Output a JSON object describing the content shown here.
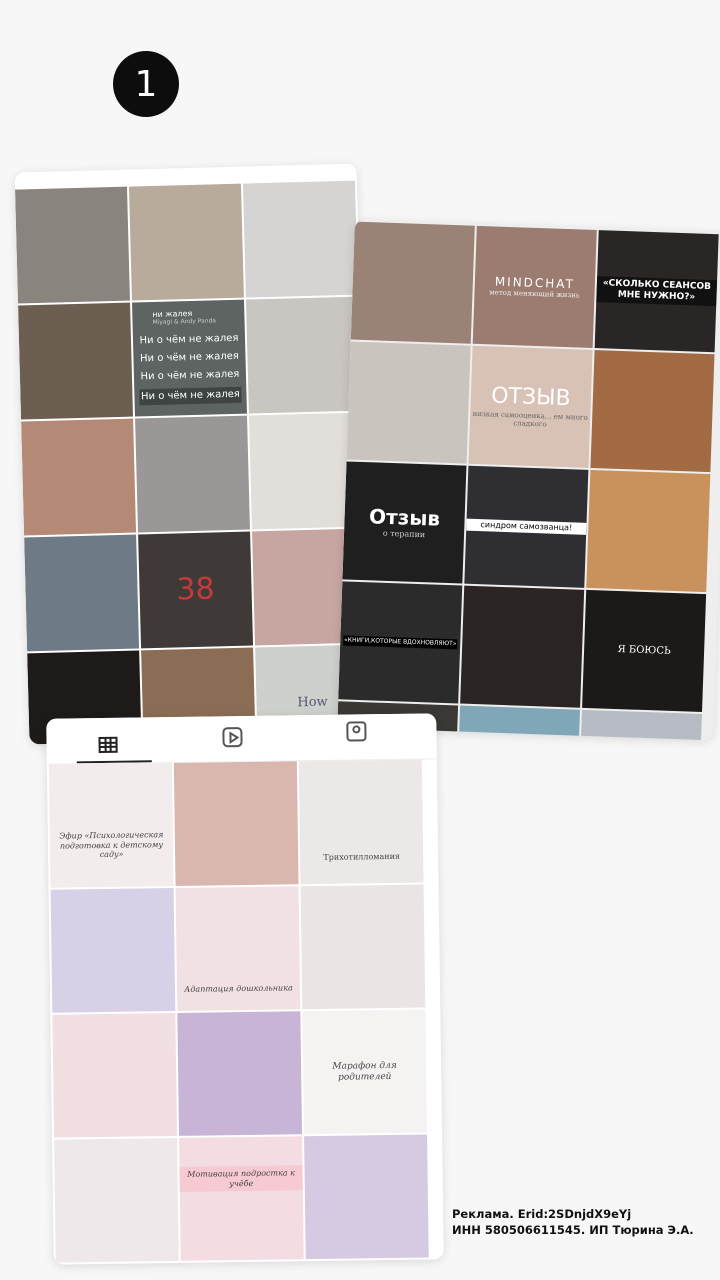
{
  "badge": "1",
  "feed_a": {
    "song_title": "ни жалея",
    "song_artist": "Miyagi & Andy Panda",
    "lyrics": [
      "Ни о чём не жалея",
      "Ни о чём не жалея",
      "Ни о чём не жалея",
      "Ни о чём не жалея"
    ],
    "number": "38",
    "caption": "How"
  },
  "feed_b": {
    "header": "MINDCHAT",
    "subheader": "метод меняющий жизнь",
    "question": "«СКОЛЬКО СЕАНСОВ МНЕ НУЖНО?»",
    "review": "ОТЗЫВ",
    "review_note": "низкая самооценка... ем много сладкого",
    "review2": "Отзыв",
    "review2_note": "о терапии",
    "impostor": "синдром самозванца!",
    "books": "«КНИГИ,КОТОРЫЕ ВДОХНОВЛЯЮТ»",
    "fears": "Я БОЮСЬ"
  },
  "feed_c": {
    "kindergarten": "Эфир «Психологическая подготовка к детскому саду»",
    "trich": "Трихотилломания",
    "adaptation": "Адаптация дошкольника",
    "marathon": "Марафон для родителей",
    "motivation": "Мотивация подростка к учёбе"
  },
  "footer": [
    "Реклама. Erid:2SDnjdX9eYj",
    "ИНН 580506611545. ИП Тюрина Э.А."
  ]
}
